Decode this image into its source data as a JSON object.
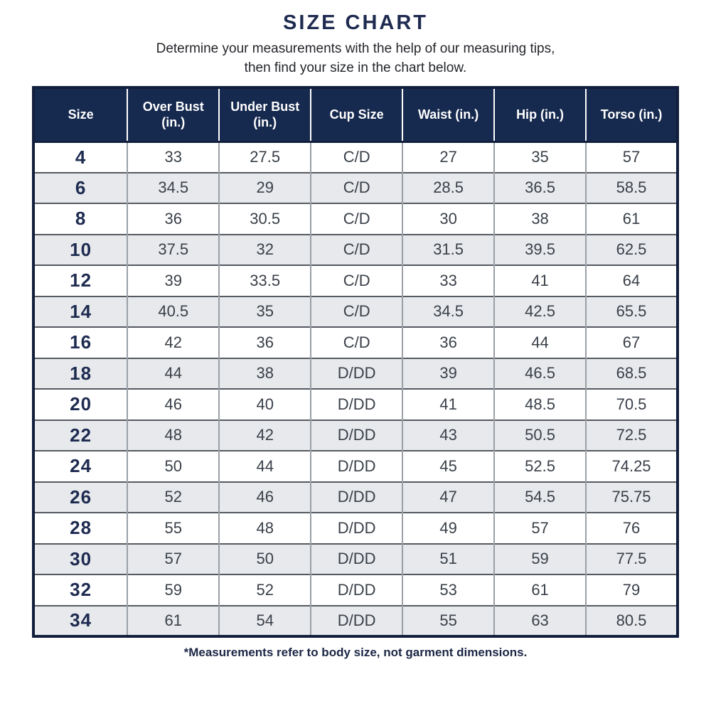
{
  "page": {
    "title": "SIZE CHART",
    "subtitle": "Determine your measurements with the help of our measuring tips,\nthen find your size in the chart below.",
    "footnote": "*Measurements refer to body size, not garment dimensions."
  },
  "table": {
    "headers": [
      "Size",
      "Over Bust\n(in.)",
      "Under Bust\n(in.)",
      "Cup Size",
      "Waist (in.)",
      "Hip (in.)",
      "Torso (in.)"
    ],
    "rows": [
      [
        "4",
        "33",
        "27.5",
        "C/D",
        "27",
        "35",
        "57"
      ],
      [
        "6",
        "34.5",
        "29",
        "C/D",
        "28.5",
        "36.5",
        "58.5"
      ],
      [
        "8",
        "36",
        "30.5",
        "C/D",
        "30",
        "38",
        "61"
      ],
      [
        "10",
        "37.5",
        "32",
        "C/D",
        "31.5",
        "39.5",
        "62.5"
      ],
      [
        "12",
        "39",
        "33.5",
        "C/D",
        "33",
        "41",
        "64"
      ],
      [
        "14",
        "40.5",
        "35",
        "C/D",
        "34.5",
        "42.5",
        "65.5"
      ],
      [
        "16",
        "42",
        "36",
        "C/D",
        "36",
        "44",
        "67"
      ],
      [
        "18",
        "44",
        "38",
        "D/DD",
        "39",
        "46.5",
        "68.5"
      ],
      [
        "20",
        "46",
        "40",
        "D/DD",
        "41",
        "48.5",
        "70.5"
      ],
      [
        "22",
        "48",
        "42",
        "D/DD",
        "43",
        "50.5",
        "72.5"
      ],
      [
        "24",
        "50",
        "44",
        "D/DD",
        "45",
        "52.5",
        "74.25"
      ],
      [
        "26",
        "52",
        "46",
        "D/DD",
        "47",
        "54.5",
        "75.75"
      ],
      [
        "28",
        "55",
        "48",
        "D/DD",
        "49",
        "57",
        "76"
      ],
      [
        "30",
        "57",
        "50",
        "D/DD",
        "51",
        "59",
        "77.5"
      ],
      [
        "32",
        "59",
        "52",
        "D/DD",
        "53",
        "61",
        "79"
      ],
      [
        "34",
        "61",
        "54",
        "D/DD",
        "55",
        "63",
        "80.5"
      ]
    ]
  },
  "colors": {
    "header_bg": "#16294e",
    "title_text": "#1e2b50",
    "row_alt_bg": "#e7e9ec",
    "body_text": "#3a4049",
    "vertical_border": "#9aa0a6",
    "horizontal_border": "#555a61"
  }
}
